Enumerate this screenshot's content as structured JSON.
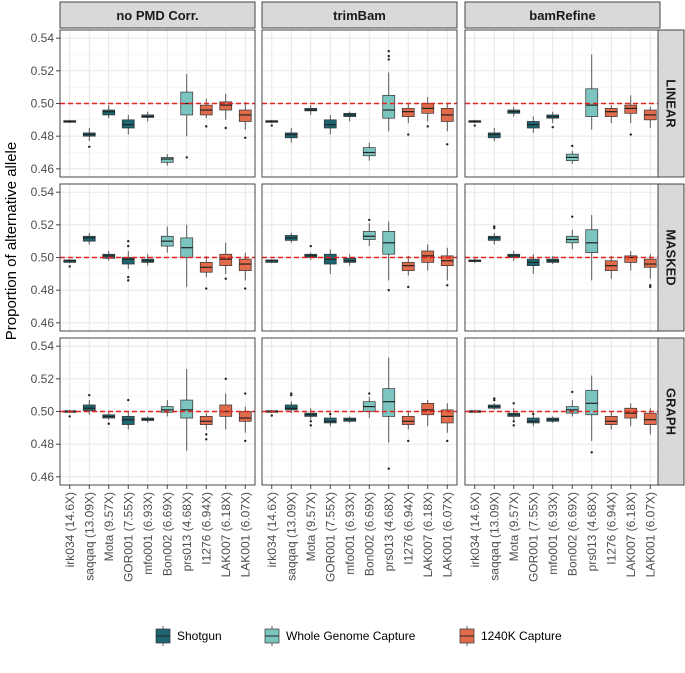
{
  "chart_data": {
    "type": "boxplot",
    "ylabel": "Proportion of alternative allele",
    "ylim": [
      0.455,
      0.545
    ],
    "yticks": [
      "0.46",
      "0.48",
      "0.50",
      "0.52",
      "0.54"
    ],
    "reference_line": 0.5,
    "columns": [
      "no PMD Corr.",
      "trimBam",
      "bamRefine"
    ],
    "rows": [
      "LINEAR",
      "MASKED",
      "GRAPH"
    ],
    "categories": [
      "irk034 (14.6X)",
      "saqqaq (13.09X)",
      "Mota (9.57X)",
      "GOR001 (7.55X)",
      "mfo001 (6.93X)",
      "Bon002 (6.69X)",
      "prs013 (4.68X)",
      "I1276 (6.94X)",
      "LAK007 (6.18X)",
      "LAK001 (6.07X)"
    ],
    "groups": [
      "Shotgun",
      "Shotgun",
      "Shotgun",
      "Shotgun",
      "Shotgun",
      "Whole Genome Capture",
      "Whole Genome Capture",
      "1240K Capture",
      "1240K Capture",
      "1240K Capture"
    ],
    "colors": {
      "Shotgun": "#1d6570",
      "Whole Genome Capture": "#7cc4c0",
      "1240K Capture": "#e06c4c"
    },
    "legend": [
      {
        "label": "Shotgun"
      },
      {
        "label": "Whole Genome Capture"
      },
      {
        "label": "1240K Capture"
      }
    ],
    "panels": [
      [
        [
          [
            0.488,
            0.4885,
            0.489,
            0.4895,
            0.49,
            []
          ],
          [
            0.477,
            0.48,
            0.481,
            0.482,
            0.485,
            [
              0.4735
            ]
          ],
          [
            0.491,
            0.493,
            0.495,
            0.496,
            0.499,
            []
          ],
          [
            0.481,
            0.485,
            0.487,
            0.49,
            0.493,
            []
          ],
          [
            0.489,
            0.4915,
            0.492,
            0.493,
            0.495,
            []
          ],
          [
            0.462,
            0.464,
            0.466,
            0.467,
            0.469,
            []
          ],
          [
            0.48,
            0.493,
            0.5,
            0.507,
            0.518,
            [
              0.467
            ]
          ],
          [
            0.491,
            0.493,
            0.496,
            0.499,
            0.503,
            [
              0.486
            ]
          ],
          [
            0.49,
            0.496,
            0.499,
            0.501,
            0.506,
            [
              0.485
            ]
          ],
          [
            0.484,
            0.489,
            0.493,
            0.496,
            0.501,
            [
              0.479
            ]
          ]
        ],
        [
          [
            0.488,
            0.4885,
            0.489,
            0.4895,
            0.49,
            [
              0.4865
            ]
          ],
          [
            0.476,
            0.479,
            0.481,
            0.482,
            0.485,
            []
          ],
          [
            0.493,
            0.4955,
            0.496,
            0.497,
            0.499,
            []
          ],
          [
            0.481,
            0.485,
            0.487,
            0.49,
            0.493,
            []
          ],
          [
            0.489,
            0.492,
            0.493,
            0.494,
            0.495,
            []
          ],
          [
            0.465,
            0.468,
            0.47,
            0.473,
            0.476,
            []
          ],
          [
            0.483,
            0.491,
            0.496,
            0.505,
            0.519,
            [
              0.527,
              0.529,
              0.532
            ]
          ],
          [
            0.488,
            0.492,
            0.495,
            0.497,
            0.5,
            [
              0.481
            ]
          ],
          [
            0.489,
            0.494,
            0.497,
            0.5,
            0.504,
            [
              0.486
            ]
          ],
          [
            0.483,
            0.489,
            0.493,
            0.497,
            0.5,
            [
              0.475
            ]
          ]
        ],
        [
          [
            0.488,
            0.4885,
            0.489,
            0.4895,
            0.49,
            [
              0.4865
            ]
          ],
          [
            0.477,
            0.479,
            0.481,
            0.482,
            0.485,
            []
          ],
          [
            0.492,
            0.494,
            0.495,
            0.496,
            0.498,
            []
          ],
          [
            0.482,
            0.485,
            0.487,
            0.489,
            0.492,
            []
          ],
          [
            0.488,
            0.491,
            0.492,
            0.493,
            0.495,
            [
              0.4855
            ]
          ],
          [
            0.463,
            0.465,
            0.467,
            0.469,
            0.471,
            [
              0.474
            ]
          ],
          [
            0.484,
            0.492,
            0.499,
            0.509,
            0.53,
            []
          ],
          [
            0.488,
            0.492,
            0.495,
            0.497,
            0.499,
            []
          ],
          [
            0.488,
            0.494,
            0.497,
            0.499,
            0.505,
            [
              0.481
            ]
          ],
          [
            0.485,
            0.49,
            0.493,
            0.496,
            0.498,
            []
          ]
        ]
      ],
      [
        [
          [
            0.4965,
            0.497,
            0.498,
            0.4985,
            0.499,
            [
              0.4945
            ]
          ],
          [
            0.508,
            0.51,
            0.512,
            0.513,
            0.515,
            []
          ],
          [
            0.498,
            0.4995,
            0.501,
            0.502,
            0.504,
            []
          ],
          [
            0.493,
            0.496,
            0.499,
            0.5,
            0.504,
            [
              0.486,
              0.488,
              0.507,
              0.51
            ]
          ],
          [
            0.495,
            0.497,
            0.498,
            0.499,
            0.502,
            []
          ],
          [
            0.503,
            0.507,
            0.51,
            0.513,
            0.519,
            []
          ],
          [
            0.482,
            0.5,
            0.506,
            0.512,
            0.52,
            []
          ],
          [
            0.488,
            0.491,
            0.494,
            0.497,
            0.501,
            [
              0.481
            ]
          ],
          [
            0.49,
            0.495,
            0.499,
            0.502,
            0.509,
            [
              0.487
            ]
          ],
          [
            0.486,
            0.492,
            0.496,
            0.499,
            0.503,
            [
              0.481
            ]
          ]
        ],
        [
          [
            0.4965,
            0.497,
            0.498,
            0.4985,
            0.499,
            []
          ],
          [
            0.509,
            0.5105,
            0.512,
            0.5135,
            0.515,
            []
          ],
          [
            0.4985,
            0.5,
            0.501,
            0.502,
            0.503,
            [
              0.507
            ]
          ],
          [
            0.49,
            0.496,
            0.499,
            0.502,
            0.505,
            []
          ],
          [
            0.495,
            0.497,
            0.498,
            0.4995,
            0.502,
            []
          ],
          [
            0.507,
            0.511,
            0.513,
            0.516,
            0.521,
            [
              0.523
            ]
          ],
          [
            0.486,
            0.502,
            0.509,
            0.516,
            0.522,
            [
              0.48
            ]
          ],
          [
            0.489,
            0.492,
            0.495,
            0.497,
            0.501,
            [
              0.482
            ]
          ],
          [
            0.492,
            0.497,
            0.501,
            0.504,
            0.508,
            []
          ],
          [
            0.486,
            0.495,
            0.498,
            0.501,
            0.506,
            [
              0.483
            ]
          ]
        ],
        [
          [
            0.4965,
            0.4975,
            0.498,
            0.4985,
            0.4995,
            []
          ],
          [
            0.508,
            0.5105,
            0.512,
            0.513,
            0.515,
            [
              0.518,
              0.519
            ]
          ],
          [
            0.498,
            0.5,
            0.501,
            0.502,
            0.504,
            []
          ],
          [
            0.49,
            0.495,
            0.497,
            0.499,
            0.502,
            []
          ],
          [
            0.496,
            0.497,
            0.498,
            0.499,
            0.501,
            []
          ],
          [
            0.505,
            0.509,
            0.511,
            0.513,
            0.517,
            [
              0.525
            ]
          ],
          [
            0.486,
            0.503,
            0.509,
            0.517,
            0.526,
            []
          ],
          [
            0.487,
            0.492,
            0.495,
            0.498,
            0.501,
            []
          ],
          [
            0.492,
            0.497,
            0.5,
            0.501,
            0.504,
            []
          ],
          [
            0.487,
            0.494,
            0.496,
            0.499,
            0.502,
            [
              0.482,
              0.483
            ]
          ]
        ]
      ],
      [
        [
          [
            0.499,
            0.4995,
            0.5,
            0.5005,
            0.501,
            [
              0.497
            ]
          ],
          [
            0.498,
            0.5005,
            0.502,
            0.504,
            0.507,
            [
              0.51
            ]
          ],
          [
            0.495,
            0.496,
            0.497,
            0.498,
            0.5,
            [
              0.4925
            ]
          ],
          [
            0.489,
            0.492,
            0.495,
            0.497,
            0.5,
            [
              0.507
            ]
          ],
          [
            0.493,
            0.4945,
            0.495,
            0.496,
            0.497,
            []
          ],
          [
            0.497,
            0.4995,
            0.501,
            0.503,
            0.507,
            []
          ],
          [
            0.476,
            0.496,
            0.501,
            0.507,
            0.526,
            []
          ],
          [
            0.489,
            0.492,
            0.494,
            0.497,
            0.499,
            [
              0.483,
              0.486
            ]
          ],
          [
            0.489,
            0.497,
            0.5,
            0.504,
            0.511,
            [
              0.52
            ]
          ],
          [
            0.487,
            0.494,
            0.496,
            0.5,
            0.503,
            [
              0.482,
              0.511
            ]
          ]
        ],
        [
          [
            0.499,
            0.4995,
            0.5,
            0.5005,
            0.501,
            [
              0.4975
            ]
          ],
          [
            0.499,
            0.501,
            0.502,
            0.504,
            0.506,
            [
              0.51,
              0.511
            ]
          ],
          [
            0.495,
            0.497,
            0.498,
            0.499,
            0.502,
            [
              0.4915,
              0.494
            ]
          ],
          [
            0.491,
            0.493,
            0.494,
            0.496,
            0.499,
            [
              0.4985
            ]
          ],
          [
            0.493,
            0.494,
            0.495,
            0.496,
            0.497,
            []
          ],
          [
            0.496,
            0.5,
            0.503,
            0.506,
            0.509,
            [
              0.511
            ]
          ],
          [
            0.481,
            0.497,
            0.506,
            0.514,
            0.533,
            [
              0.465
            ]
          ],
          [
            0.489,
            0.492,
            0.494,
            0.497,
            0.5,
            [
              0.482
            ]
          ],
          [
            0.491,
            0.498,
            0.501,
            0.505,
            0.507,
            []
          ],
          [
            0.487,
            0.493,
            0.497,
            0.501,
            0.505,
            [
              0.482
            ]
          ]
        ],
        [
          [
            0.499,
            0.4995,
            0.5,
            0.5005,
            0.501,
            []
          ],
          [
            0.501,
            0.502,
            0.503,
            0.504,
            0.505,
            [
              0.507,
              0.508
            ]
          ],
          [
            0.495,
            0.497,
            0.498,
            0.499,
            0.502,
            [
              0.4915,
              0.494,
              0.505
            ]
          ],
          [
            0.491,
            0.493,
            0.494,
            0.496,
            0.499,
            [
              0.4985
            ]
          ],
          [
            0.493,
            0.494,
            0.495,
            0.496,
            0.497,
            []
          ],
          [
            0.497,
            0.499,
            0.501,
            0.503,
            0.507,
            [
              0.512
            ]
          ],
          [
            0.482,
            0.498,
            0.505,
            0.513,
            0.522,
            [
              0.475
            ]
          ],
          [
            0.489,
            0.492,
            0.494,
            0.497,
            0.5,
            []
          ],
          [
            0.491,
            0.496,
            0.499,
            0.502,
            0.505,
            []
          ],
          [
            0.486,
            0.492,
            0.495,
            0.499,
            0.502,
            []
          ]
        ]
      ]
    ]
  }
}
